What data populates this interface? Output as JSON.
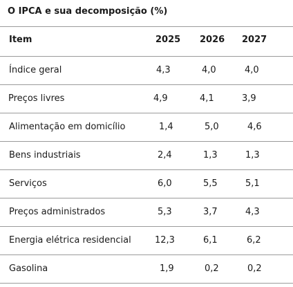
{
  "table": {
    "title": "O IPCA e sua decomposição (%)",
    "headers": {
      "item": "Item",
      "y2025": "2025",
      "y2026": "2026",
      "y2027": "2027"
    },
    "rows": [
      {
        "item": "Índice geral",
        "y2025": "4,3",
        "y2026": "4,0",
        "y2027": "4,0"
      },
      {
        "item": "Preços livres",
        "y2025": "4,9",
        "y2026": "4,1",
        "y2027": "3,9"
      },
      {
        "item": "Alimentação em domicílio",
        "y2025": "1,4",
        "y2026": "5,0",
        "y2027": "4,6"
      },
      {
        "item": "Bens industriais",
        "y2025": "2,4",
        "y2026": "1,3",
        "y2027": "1,3"
      },
      {
        "item": "Serviços",
        "y2025": "6,0",
        "y2026": "5,5",
        "y2027": "5,1"
      },
      {
        "item": "Preços administrados",
        "y2025": "5,3",
        "y2026": "3,7",
        "y2027": "4,3"
      },
      {
        "item": "Energia elétrica residencial",
        "y2025": "12,3",
        "y2026": "6,1",
        "y2027": "6,2"
      },
      {
        "item": "Gasolina",
        "y2025": "1,9",
        "y2026": "0,2",
        "y2027": "0,2"
      }
    ]
  }
}
